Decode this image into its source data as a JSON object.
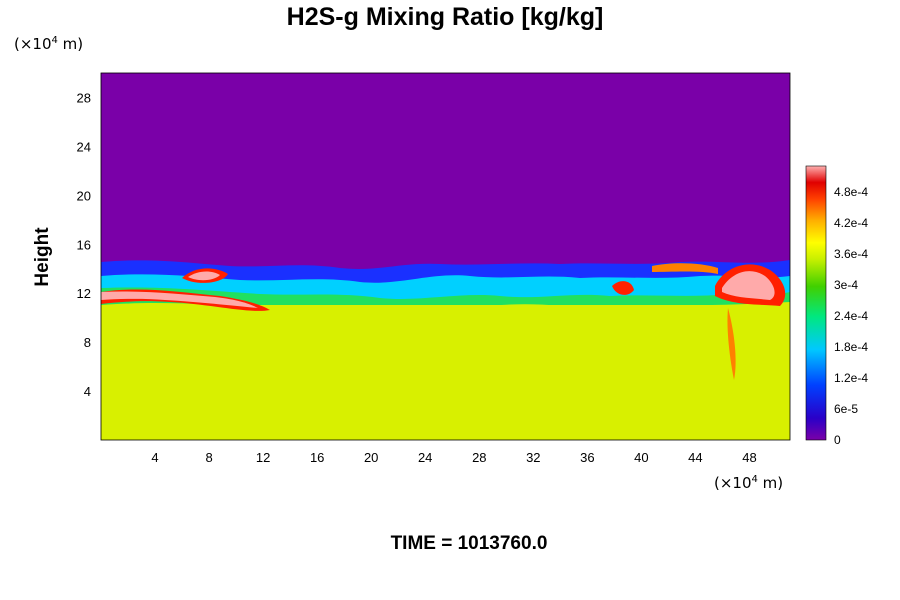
{
  "chart_data": {
    "type": "heatmap",
    "title": "H2S-g Mixing Ratio [kg/kg]",
    "ylabel": "Height",
    "xlabel": "",
    "x_unit_prefix": "(×10",
    "x_unit_exp": "4",
    "x_unit_suffix": " m)",
    "y_unit_prefix": "(×10",
    "y_unit_exp": "4",
    "y_unit_suffix": " m)",
    "xlim": [
      0,
      51
    ],
    "ylim": [
      0,
      30
    ],
    "x_ticks": [
      4,
      8,
      12,
      16,
      20,
      24,
      28,
      32,
      36,
      40,
      44,
      48
    ],
    "y_ticks": [
      4,
      8,
      12,
      16,
      20,
      24,
      28
    ],
    "colorbar": {
      "range": [
        0,
        0.00053
      ],
      "ticks": [
        {
          "value": 0,
          "label": "0"
        },
        {
          "value": 6e-05,
          "label": "6e-5"
        },
        {
          "value": 0.00012,
          "label": "1.2e-4"
        },
        {
          "value": 0.00018,
          "label": "1.8e-4"
        },
        {
          "value": 0.00024,
          "label": "2.4e-4"
        },
        {
          "value": 0.0003,
          "label": "3e-4"
        },
        {
          "value": 0.00036,
          "label": "3.6e-4"
        },
        {
          "value": 0.00042,
          "label": "4.2e-4"
        },
        {
          "value": 0.00048,
          "label": "4.8e-4"
        }
      ]
    },
    "field_summary": {
      "upper_layer": {
        "value": 0,
        "color": "#7a00a8"
      },
      "lower_layer": {
        "value": 0.00036,
        "color": "#d8f000"
      },
      "transition_height": 14,
      "high_concentration_band": {
        "height": 11.5,
        "color": "#ffaaaa"
      }
    },
    "time_label": "TIME = 1013760.0"
  }
}
